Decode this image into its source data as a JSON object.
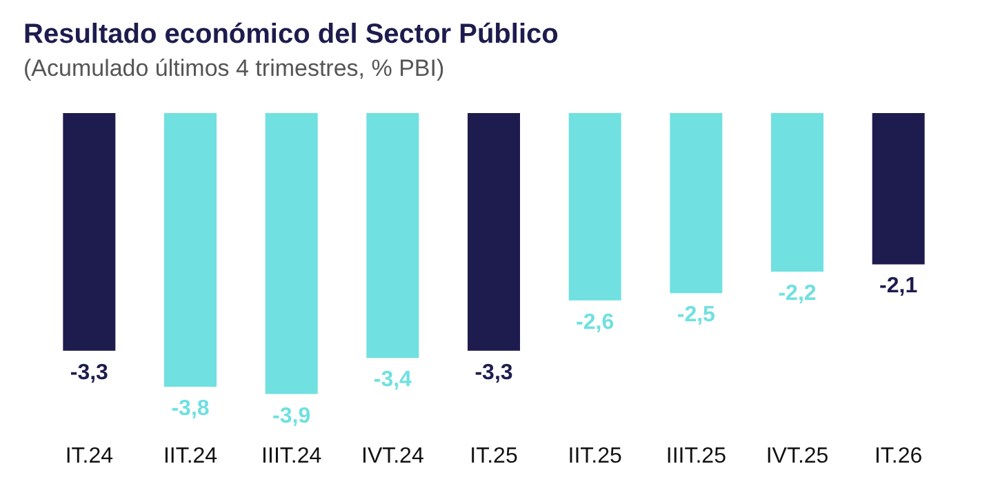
{
  "chart_data": {
    "type": "bar",
    "title": "Resultado económico del Sector Público",
    "subtitle": "(Acumulado últimos 4 trimestres, % PBI)",
    "categories": [
      "IT.24",
      "IIT.24",
      "IIIT.24",
      "IVT.24",
      "IT.25",
      "IIT.25",
      "IIIT.25",
      "IVT.25",
      "IT.26"
    ],
    "values": [
      -3.3,
      -3.8,
      -3.9,
      -3.4,
      -3.3,
      -2.6,
      -2.5,
      -2.2,
      -2.1
    ],
    "colors": [
      "#1e1c4e",
      "#70e0e0",
      "#70e0e0",
      "#70e0e0",
      "#1e1c4e",
      "#70e0e0",
      "#70e0e0",
      "#70e0e0",
      "#1e1c4e"
    ],
    "value_labels": [
      "-3,3",
      "-3,8",
      "-3,9",
      "-3,4",
      "-3,3",
      "-2,6",
      "-2,5",
      "-2,2",
      "-2,1"
    ],
    "grid": false
  }
}
